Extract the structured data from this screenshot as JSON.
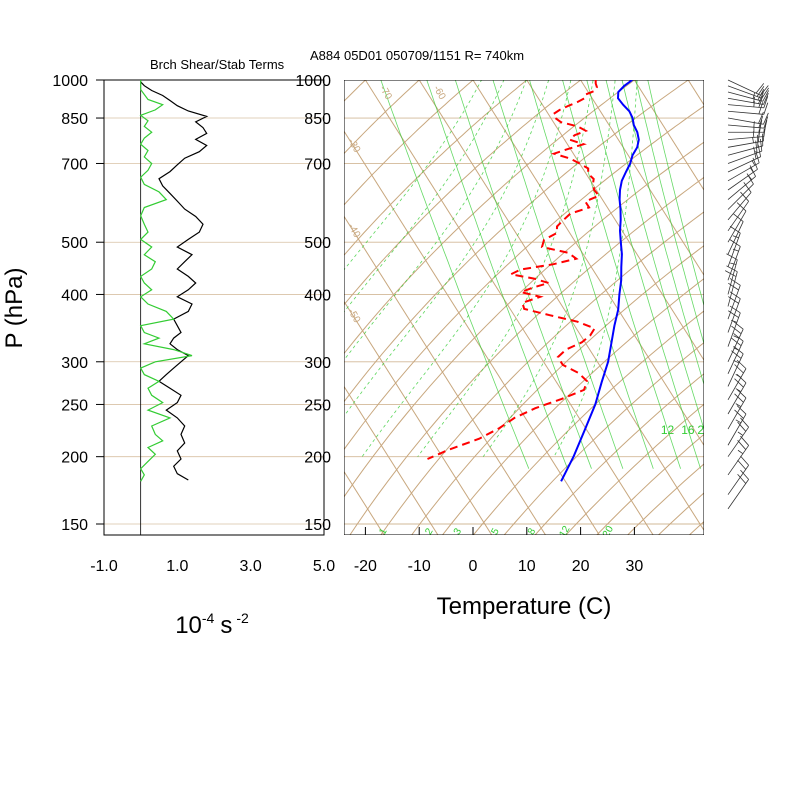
{
  "header": {
    "left_title": "Brch Shear/Stab Terms",
    "right_title": "A884 05D01 050709/1151 R= 740km"
  },
  "colors": {
    "isotherm": "#c8a77e",
    "mixing_ratio": "#33cc33",
    "temperature": "#0000ff",
    "dewpoint": "#ff0000",
    "shear": "#000000",
    "stability": "#33cc33",
    "wind": "#333333"
  },
  "chart_data": [
    {
      "type": "line",
      "name": "shear-stability-panel",
      "title": "Brch Shear/Stab Terms",
      "xlabel": "10-4 s -2",
      "xlabel_base": "10",
      "xlabel_exp": "-4",
      "xlabel_unit": "s",
      "xlabel_unit_exp": "-2",
      "ylabel": "P (hPa)",
      "xlim": [
        -1.0,
        5.0
      ],
      "xticks": [
        "-1.0",
        "1.0",
        "3.0",
        "5.0"
      ],
      "ylim": [
        1000,
        150
      ],
      "yscale": "log",
      "yticks": [
        "150",
        "200",
        "250",
        "300",
        "400",
        "500",
        "700",
        "850",
        "1000"
      ],
      "series": [
        {
          "role": "shear",
          "color": "#000000",
          "pressure": [
            181,
            186,
            192,
            198,
            205,
            212,
            220,
            228,
            236,
            244,
            252,
            260,
            268,
            276,
            284,
            292,
            300,
            308,
            316,
            324,
            332,
            340,
            350,
            360,
            372,
            384,
            396,
            408,
            420,
            432,
            446,
            460,
            474,
            490,
            506,
            522,
            540,
            558,
            576,
            596,
            616,
            636,
            656,
            676,
            696,
            716,
            736,
            756,
            776,
            796,
            816,
            836,
            856,
            876,
            896,
            916,
            936,
            956,
            976,
            992
          ],
          "values": [
            1.3,
            1.0,
            0.9,
            1.1,
            1.0,
            1.2,
            1.1,
            1.2,
            1.0,
            0.7,
            1.0,
            1.1,
            0.8,
            0.5,
            0.7,
            0.9,
            1.1,
            1.3,
            1.0,
            0.8,
            0.9,
            1.1,
            1.0,
            0.9,
            1.3,
            1.4,
            1.0,
            1.3,
            1.5,
            1.3,
            1.0,
            1.2,
            1.4,
            1.0,
            1.3,
            1.6,
            1.7,
            1.5,
            1.2,
            1.0,
            0.8,
            0.6,
            0.5,
            0.8,
            1.0,
            1.2,
            1.6,
            1.8,
            1.5,
            1.8,
            1.7,
            1.5,
            1.8,
            1.3,
            1.0,
            0.8,
            0.6,
            0.3,
            0.1,
            0.0
          ]
        },
        {
          "role": "stability",
          "color": "#33cc33",
          "pressure": [
            180,
            185,
            190,
            196,
            202,
            208,
            214,
            220,
            228,
            236,
            244,
            252,
            260,
            268,
            276,
            284,
            292,
            300,
            308,
            316,
            324,
            332,
            340,
            350,
            360,
            372,
            384,
            396,
            408,
            420,
            432,
            446,
            460,
            474,
            490,
            506,
            522,
            540,
            560,
            580,
            600,
            620,
            640,
            660,
            680,
            700,
            720,
            740,
            760,
            780,
            800,
            820,
            840,
            860,
            880,
            900,
            920,
            940,
            960,
            980,
            1000
          ],
          "values": [
            0.0,
            0.1,
            0.0,
            0.2,
            0.4,
            0.2,
            0.6,
            0.4,
            0.3,
            0.8,
            0.2,
            0.6,
            0.3,
            0.2,
            0.5,
            0.1,
            0.0,
            0.4,
            1.4,
            0.9,
            0.1,
            0.5,
            0.1,
            0.0,
            0.9,
            0.7,
            0.2,
            0.0,
            0.3,
            0.1,
            0.0,
            0.3,
            0.4,
            0.1,
            0.3,
            0.0,
            0.2,
            0.1,
            0.0,
            0.1,
            0.7,
            0.5,
            0.1,
            0.0,
            0.2,
            0.3,
            0.1,
            0.2,
            0.0,
            0.1,
            0.3,
            0.1,
            0.2,
            0.0,
            0.4,
            0.6,
            0.2,
            0.1,
            0.0,
            0.0,
            0.0
          ]
        }
      ]
    },
    {
      "type": "line",
      "name": "skew-t-log-p",
      "title": "A884 05D01 050709/1151 R= 740km",
      "xlabel": "Temperature (C)",
      "ylabel": "P (hPa)",
      "xlim": [
        -23,
        42
      ],
      "xticks": [
        -20,
        -10,
        0,
        10,
        20,
        30
      ],
      "ylim": [
        1000,
        150
      ],
      "yscale": "log",
      "yticks": [
        "150",
        "200",
        "250",
        "300",
        "400",
        "500",
        "700",
        "850",
        "1000"
      ],
      "isotherms": [
        -100,
        -90,
        -80,
        -70,
        -60,
        -50,
        -40,
        -30,
        -20,
        -10,
        0,
        10,
        20,
        30,
        40
      ],
      "isotherm_labels_top": [
        "-60",
        "-70",
        "-80",
        "-90",
        "-100",
        "-110",
        "-120",
        "-130",
        "-140",
        "-150"
      ],
      "isotherm_labels_left": [
        "-50",
        "-40",
        "-30",
        "-20",
        "-10",
        "0",
        "10",
        "20"
      ],
      "mixing_ratio_lines": [
        1,
        2,
        3,
        5,
        8,
        12,
        16,
        20,
        24,
        28,
        32
      ],
      "mixing_ratio_labels_top": [
        "12",
        "16",
        "20",
        "24",
        "28",
        "32"
      ],
      "mixing_ratio_labels_bottom": [
        "1",
        "2",
        "3",
        "5",
        "8",
        "12",
        "20"
      ],
      "series": [
        {
          "name": "Temperature",
          "color": "#0000ff",
          "style": "solid",
          "pressure": [
            1000,
            975,
            950,
            925,
            900,
            875,
            850,
            825,
            800,
            775,
            750,
            725,
            700,
            675,
            650,
            625,
            600,
            575,
            550,
            525,
            500,
            475,
            450,
            425,
            400,
            375,
            350,
            325,
            300,
            275,
            250,
            225,
            200,
            180
          ],
          "temperature": [
            29.6,
            27.4,
            25.6,
            24.8,
            25.0,
            25.4,
            25.2,
            24.6,
            24.4,
            23.8,
            22.6,
            20.8,
            19.4,
            17.6,
            15.8,
            14.4,
            13.2,
            12.2,
            11.0,
            9.6,
            8.4,
            7.2,
            5.6,
            4.0,
            2.0,
            0.0,
            -2.6,
            -5.2,
            -8.0,
            -11.6,
            -15.4,
            -20.2,
            -25.6,
            -30.8
          ]
        },
        {
          "name": "Dewpoint",
          "color": "#ff0000",
          "style": "dashed",
          "pressure": [
            1000,
            985,
            970,
            955,
            940,
            925,
            910,
            895,
            880,
            865,
            850,
            835,
            820,
            805,
            790,
            775,
            760,
            745,
            730,
            715,
            700,
            685,
            670,
            655,
            640,
            625,
            610,
            595,
            580,
            565,
            550,
            535,
            520,
            505,
            490,
            478,
            466,
            455,
            445,
            436,
            428,
            420,
            412,
            404,
            396,
            386,
            376,
            366,
            356,
            346,
            336,
            326,
            316,
            306,
            296,
            286,
            276,
            266,
            256,
            246,
            236,
            226,
            216,
            206,
            198
          ],
          "temperature": [
            22.8,
            22.4,
            22.2,
            21.4,
            19.2,
            18.6,
            16.8,
            14.6,
            12.6,
            11.0,
            10.8,
            11.4,
            14.0,
            15.0,
            12.4,
            11.0,
            13.0,
            9.6,
            6.4,
            8.8,
            10.0,
            11.0,
            10.4,
            10.8,
            10.0,
            9.6,
            9.8,
            6.6,
            6.6,
            2.4,
            0.4,
            -1.6,
            -2.4,
            -5.6,
            -6.8,
            -2.6,
            -1.8,
            -6.8,
            -13.4,
            -15.8,
            -12.0,
            -9.8,
            -13.2,
            -16.0,
            -13.0,
            -17.0,
            -17.4,
            -13.4,
            -9.0,
            -6.6,
            -8.2,
            -10.6,
            -14.4,
            -16.8,
            -16.8,
            -14.8,
            -14.2,
            -15.8,
            -21.0,
            -27.0,
            -32.0,
            -36.0,
            -41.0,
            -48.0,
            -53.0
          ]
        }
      ],
      "wind_barbs": [
        {
          "p": 1000,
          "dir": 115,
          "spd": 20
        },
        {
          "p": 975,
          "dir": 110,
          "spd": 20
        },
        {
          "p": 950,
          "dir": 105,
          "spd": 25
        },
        {
          "p": 925,
          "dir": 100,
          "spd": 25
        },
        {
          "p": 900,
          "dir": 95,
          "spd": 25
        },
        {
          "p": 875,
          "dir": 95,
          "spd": 20
        },
        {
          "p": 850,
          "dir": 100,
          "spd": 20
        },
        {
          "p": 825,
          "dir": 95,
          "spd": 25
        },
        {
          "p": 800,
          "dir": 90,
          "spd": 25
        },
        {
          "p": 775,
          "dir": 85,
          "spd": 25
        },
        {
          "p": 750,
          "dir": 80,
          "spd": 25
        },
        {
          "p": 725,
          "dir": 75,
          "spd": 20
        },
        {
          "p": 700,
          "dir": 70,
          "spd": 20
        },
        {
          "p": 675,
          "dir": 65,
          "spd": 20
        },
        {
          "p": 650,
          "dir": 60,
          "spd": 15
        },
        {
          "p": 625,
          "dir": 55,
          "spd": 15
        },
        {
          "p": 600,
          "dir": 50,
          "spd": 15
        },
        {
          "p": 575,
          "dir": 45,
          "spd": 10
        },
        {
          "p": 550,
          "dir": 40,
          "spd": 10
        },
        {
          "p": 525,
          "dir": 35,
          "spd": 10
        },
        {
          "p": 500,
          "dir": 30,
          "spd": 10
        },
        {
          "p": 475,
          "dir": 25,
          "spd": 10
        },
        {
          "p": 450,
          "dir": 20,
          "spd": 15
        },
        {
          "p": 425,
          "dir": 20,
          "spd": 15
        },
        {
          "p": 400,
          "dir": 15,
          "spd": 15
        },
        {
          "p": 380,
          "dir": 15,
          "spd": 20
        },
        {
          "p": 360,
          "dir": 20,
          "spd": 20
        },
        {
          "p": 340,
          "dir": 20,
          "spd": 20
        },
        {
          "p": 320,
          "dir": 20,
          "spd": 25
        },
        {
          "p": 300,
          "dir": 25,
          "spd": 25
        },
        {
          "p": 285,
          "dir": 25,
          "spd": 25
        },
        {
          "p": 270,
          "dir": 25,
          "spd": 25
        },
        {
          "p": 255,
          "dir": 30,
          "spd": 25
        },
        {
          "p": 240,
          "dir": 30,
          "spd": 25
        },
        {
          "p": 225,
          "dir": 30,
          "spd": 25
        },
        {
          "p": 210,
          "dir": 30,
          "spd": 25
        },
        {
          "p": 200,
          "dir": 35,
          "spd": 25
        },
        {
          "p": 185,
          "dir": 35,
          "spd": 25
        },
        {
          "p": 170,
          "dir": 35,
          "spd": 20
        },
        {
          "p": 160,
          "dir": 35,
          "spd": 20
        }
      ]
    }
  ]
}
